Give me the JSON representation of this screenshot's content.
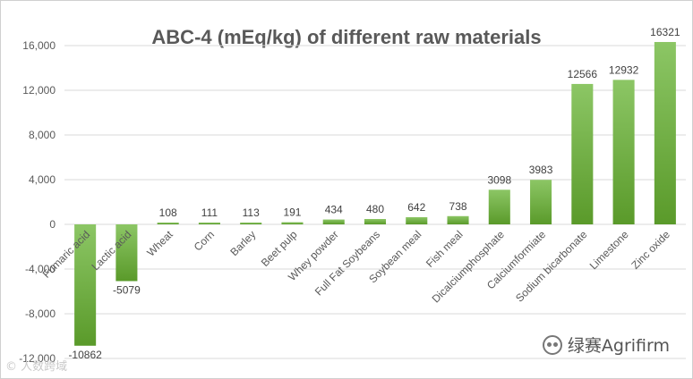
{
  "chart_data": {
    "type": "bar",
    "title": "ABC-4 (mEq/kg) of different raw materials",
    "categories": [
      "Fumaric acid",
      "Lactic acid",
      "Wheat",
      "Corn",
      "Barley",
      "Beet pulp",
      "Whey powder",
      "Full Fat Soybeans",
      "Soybean meal",
      "Fish meal",
      "Dicalciumphosphate",
      "Calciumformiate",
      "Sodium bicarbonate",
      "Limestone",
      "Zinc oxide"
    ],
    "values": [
      -10862,
      -5079,
      108,
      111,
      113,
      191,
      434,
      480,
      642,
      738,
      3098,
      3983,
      12566,
      12932,
      16321
    ],
    "data_labels": [
      "-10862",
      "-5079",
      "108",
      "111",
      "113",
      "191",
      "434",
      "480",
      "642",
      "738",
      "3098",
      "3983",
      "12566",
      "12932",
      "16321"
    ],
    "ylim": [
      -12000,
      18000
    ],
    "yticks": [
      -12000,
      -8000,
      -4000,
      0,
      4000,
      8000,
      12000,
      16000
    ],
    "ytick_labels": [
      "-12,000",
      "-8,000",
      "-4,000",
      "0",
      "4,000",
      "8,000",
      "12,000",
      "16,000"
    ],
    "xlabel": "",
    "ylabel": "",
    "grid": true,
    "bar_color_top": "#8cc665",
    "bar_color_bottom": "#5a9a2a"
  },
  "watermark": {
    "brand": "绿赛Agrifirm",
    "corner_text": "© 人数跨域"
  }
}
